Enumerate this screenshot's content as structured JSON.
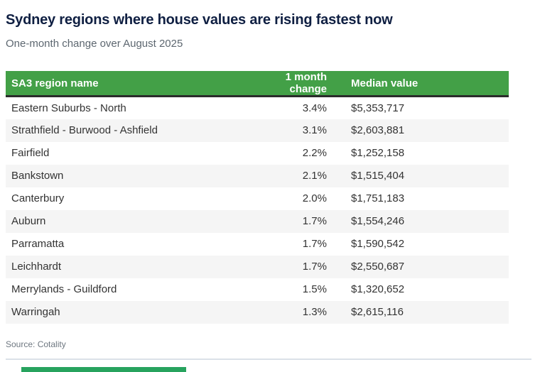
{
  "chart_data": {
    "type": "table",
    "title": "Sydney regions where house values are rising fastest now",
    "subtitle": "One-month change over August 2025",
    "columns": [
      "SA3 region name",
      "1 month change",
      "Median value"
    ],
    "rows": [
      {
        "region": "Eastern Suburbs - North",
        "change": "3.4%",
        "median": "$5,353,717"
      },
      {
        "region": "Strathfield - Burwood - Ashfield",
        "change": "3.1%",
        "median": "$2,603,881"
      },
      {
        "region": "Fairfield",
        "change": "2.2%",
        "median": "$1,252,158"
      },
      {
        "region": "Bankstown",
        "change": "2.1%",
        "median": "$1,515,404"
      },
      {
        "region": "Canterbury",
        "change": "2.0%",
        "median": "$1,751,183"
      },
      {
        "region": "Auburn",
        "change": "1.7%",
        "median": "$1,554,246"
      },
      {
        "region": "Parramatta",
        "change": "1.7%",
        "median": "$1,590,542"
      },
      {
        "region": "Leichhardt",
        "change": "1.7%",
        "median": "$2,550,687"
      },
      {
        "region": "Merrylands - Guildford",
        "change": "1.5%",
        "median": "$1,320,652"
      },
      {
        "region": "Warringah",
        "change": "1.3%",
        "median": "$2,615,116"
      }
    ],
    "source": "Source: Cotality",
    "layout": {
      "grid": "off",
      "row_alternation": "even rows shaded",
      "column_alignment": [
        "left",
        "right",
        "left"
      ]
    }
  },
  "colors": {
    "header_green": "#43a047",
    "title_navy": "#0f1f42",
    "body_text": "#333333",
    "subtitle_gray": "#5d6770",
    "source_gray": "#6e7780",
    "header_border_dark": "#2b2b2b",
    "divider_light": "#dbe1e8",
    "bottom_strip_green": "#27a35e"
  }
}
